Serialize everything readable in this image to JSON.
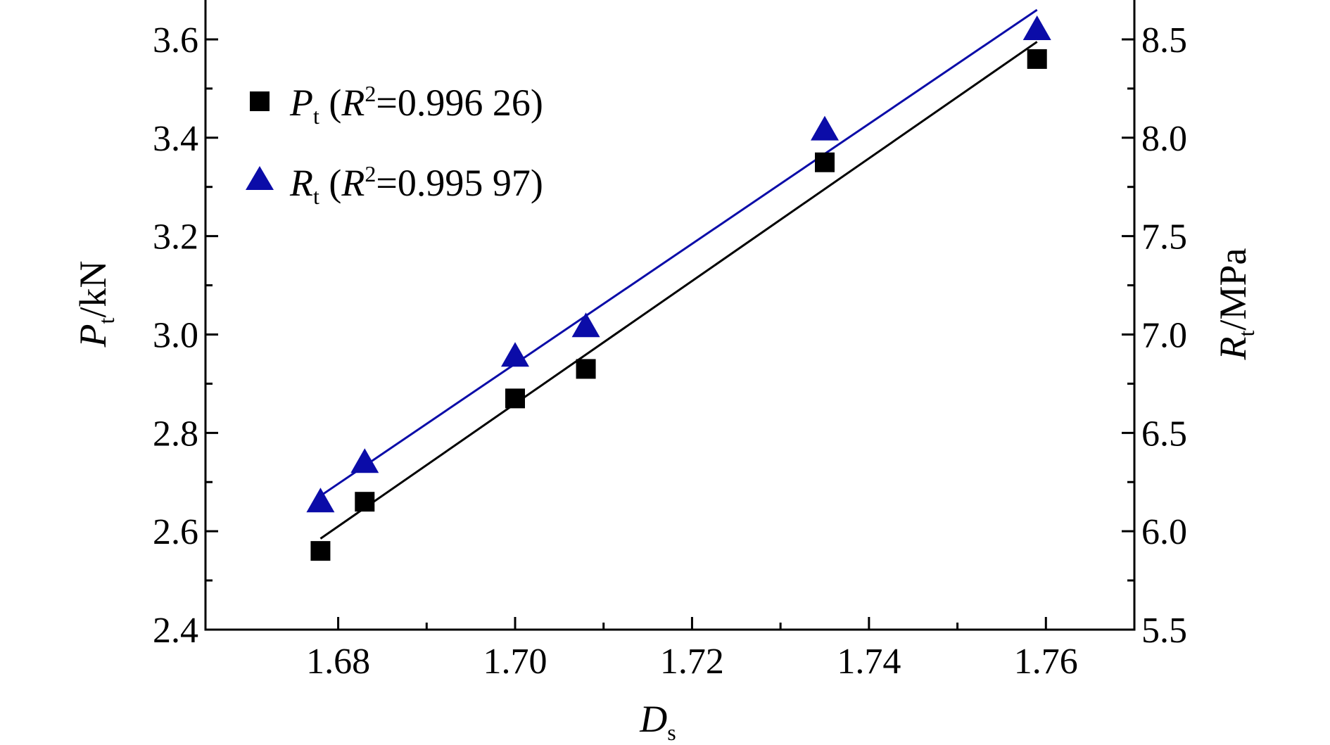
{
  "chart_data": {
    "type": "scatter",
    "title": "",
    "x_axis": {
      "label_main": "D",
      "label_sub": "s",
      "range": [
        1.665,
        1.77
      ],
      "ticks": [
        "1.68",
        "1.70",
        "1.72",
        "1.74",
        "1.76"
      ]
    },
    "y_left_axis": {
      "label_main": "P",
      "label_sub": "t",
      "label_unit": "/kN",
      "range": [
        2.4,
        3.68
      ],
      "ticks": [
        "2.4",
        "2.6",
        "2.8",
        "3.0",
        "3.2",
        "3.4",
        "3.6"
      ]
    },
    "y_right_axis": {
      "label_main": "R",
      "label_sub": "t",
      "label_unit": "/MPa",
      "range": [
        5.5,
        8.7
      ],
      "ticks": [
        "5.5",
        "6.0",
        "6.5",
        "7.0",
        "7.5",
        "8.0",
        "8.5"
      ]
    },
    "grid": false,
    "legend_position": "top-left",
    "series": [
      {
        "axis": "left",
        "marker": "square",
        "color": "#000000",
        "legend": {
          "main": "P",
          "sub": "t",
          "r2_prefix": " (",
          "r_letter": "R",
          "r_sup": "2",
          "r2_value": "=0.996 26)"
        },
        "x": [
          1.678,
          1.683,
          1.7,
          1.708,
          1.735,
          1.759
        ],
        "y": [
          2.56,
          2.66,
          2.87,
          2.93,
          3.35,
          3.56
        ],
        "fit_line": {
          "x": [
            1.678,
            1.759
          ],
          "y": [
            2.585,
            3.595
          ]
        }
      },
      {
        "axis": "right",
        "marker": "triangle",
        "color": "#0b0ca8",
        "legend": {
          "main": "R",
          "sub": "t",
          "r2_prefix": " (",
          "r_letter": "R",
          "r_sup": "2",
          "r2_value": "=0.995 97)"
        },
        "x": [
          1.678,
          1.683,
          1.7,
          1.708,
          1.735,
          1.759
        ],
        "y": [
          6.15,
          6.35,
          6.89,
          7.04,
          8.04,
          8.55
        ],
        "fit_line": {
          "x": [
            1.678,
            1.759
          ],
          "y": [
            6.18,
            8.65
          ]
        }
      }
    ]
  }
}
